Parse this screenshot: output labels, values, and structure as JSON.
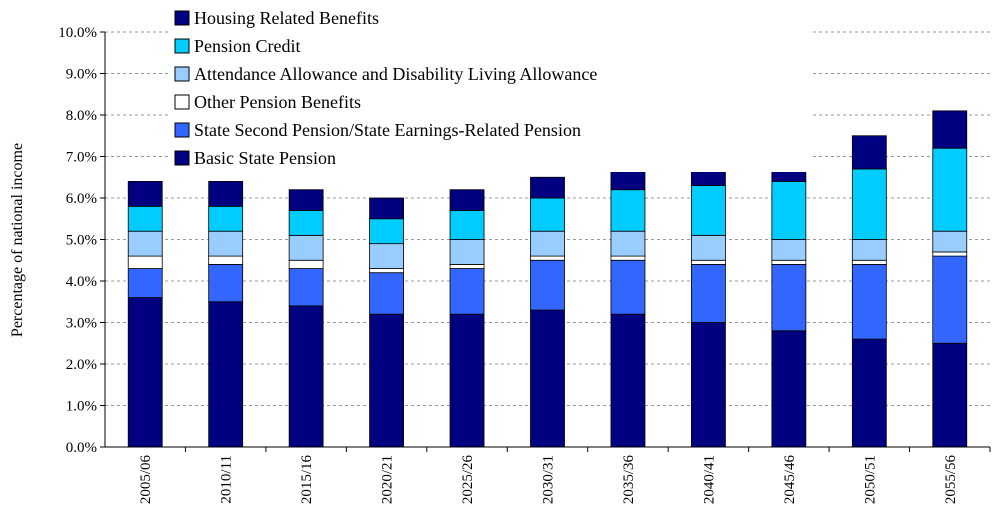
{
  "chart_data": {
    "type": "stacked-bar",
    "y_label": "Percentage of national income",
    "categories": [
      "2005/06",
      "2010/11",
      "2015/16",
      "2020/21",
      "2025/26",
      "2030/31",
      "2035/36",
      "2040/41",
      "2045/46",
      "2050/51",
      "2055/56"
    ],
    "series": [
      {
        "name": "Basic State Pension",
        "color": "#000080",
        "values": [
          3.6,
          3.5,
          3.4,
          3.2,
          3.2,
          3.3,
          3.2,
          3.0,
          2.8,
          2.6,
          2.5
        ]
      },
      {
        "name": "State Second Pension/State Earnings-Related Pension",
        "color": "#3366ff",
        "values": [
          0.7,
          0.9,
          0.9,
          1.0,
          1.1,
          1.2,
          1.3,
          1.4,
          1.6,
          1.8,
          2.1
        ]
      },
      {
        "name": "Other Pension Benefits",
        "color": "#ffffff",
        "values": [
          0.3,
          0.2,
          0.2,
          0.1,
          0.1,
          0.1,
          0.1,
          0.1,
          0.1,
          0.1,
          0.1
        ]
      },
      {
        "name": "Attendance Allowance and Disability Living Allowance",
        "color": "#99ccff",
        "values": [
          0.6,
          0.6,
          0.6,
          0.6,
          0.6,
          0.6,
          0.6,
          0.6,
          0.5,
          0.5,
          0.5
        ]
      },
      {
        "name": "Pension Credit",
        "color": "#00ccff",
        "values": [
          0.6,
          0.6,
          0.6,
          0.6,
          0.7,
          0.8,
          1.0,
          1.2,
          1.4,
          1.7,
          2.0
        ]
      },
      {
        "name": "Housing Related Benefits",
        "color": "#000080",
        "values": [
          0.6,
          0.6,
          0.5,
          0.5,
          0.5,
          0.5,
          0.6,
          0.6,
          0.7,
          0.8,
          0.9
        ]
      }
    ],
    "ylim": [
      0,
      10
    ],
    "yticks": [
      {
        "value": 0,
        "label": "0.0%"
      },
      {
        "value": 1,
        "label": "1.0%"
      },
      {
        "value": 2,
        "label": "2.0%"
      },
      {
        "value": 3,
        "label": "3.0%"
      },
      {
        "value": 4,
        "label": "4.0%"
      },
      {
        "value": 5,
        "label": "5.0%"
      },
      {
        "value": 6,
        "label": "6.0%"
      },
      {
        "value": 7,
        "label": "7.0%"
      },
      {
        "value": 8,
        "label": "8.0%"
      },
      {
        "value": 9,
        "label": "9.0%"
      },
      {
        "value": 10,
        "label": "10.0%"
      }
    ],
    "grid": true,
    "legend": "top-left"
  }
}
